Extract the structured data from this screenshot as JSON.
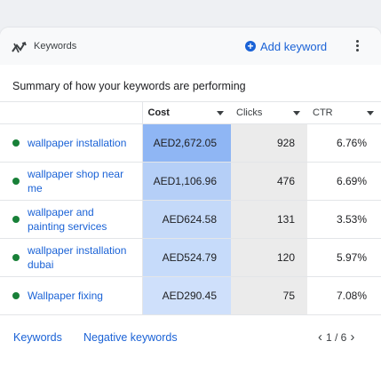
{
  "header": {
    "icon": "keywords-trend-icon",
    "title": "Keywords",
    "add_label": "Add keyword",
    "menu_icon": "more-vert-icon"
  },
  "summary": "Summary of how your keywords are performing",
  "columns": [
    {
      "label": "Cost",
      "sorted": true
    },
    {
      "label": "Clicks",
      "sorted": false
    },
    {
      "label": "CTR",
      "sorted": false
    }
  ],
  "rows": [
    {
      "keyword": "wallpaper installation",
      "status_color": "#188038",
      "cost": "AED2,672.05",
      "cost_color": "#8fb6f4",
      "clicks": "928",
      "ctr": "6.76%"
    },
    {
      "keyword": "wallpaper shop near me",
      "status_color": "#188038",
      "cost": "AED1,106.96",
      "cost_color": "#b5cff7",
      "clicks": "476",
      "ctr": "6.69%"
    },
    {
      "keyword": "wallpaper and painting services",
      "status_color": "#188038",
      "cost": "AED624.58",
      "cost_color": "#c4d9f9",
      "clicks": "131",
      "ctr": "3.53%"
    },
    {
      "keyword": "wallpaper installation dubai",
      "status_color": "#188038",
      "cost": "AED524.79",
      "cost_color": "#c6dbfa",
      "clicks": "120",
      "ctr": "5.97%"
    },
    {
      "keyword": "Wallpaper fixing",
      "status_color": "#188038",
      "cost": "AED290.45",
      "cost_color": "#cfe0fb",
      "clicks": "75",
      "ctr": "7.08%"
    }
  ],
  "footer": {
    "link1": "Keywords",
    "link2": "Negative keywords",
    "page": "1 / 6",
    "prev_icon": "chevron-left-icon",
    "next_icon": "chevron-right-icon"
  },
  "colors": {
    "accent": "#1a62d6",
    "status_enabled": "#188038",
    "clicks_bg": "#ebebeb"
  }
}
